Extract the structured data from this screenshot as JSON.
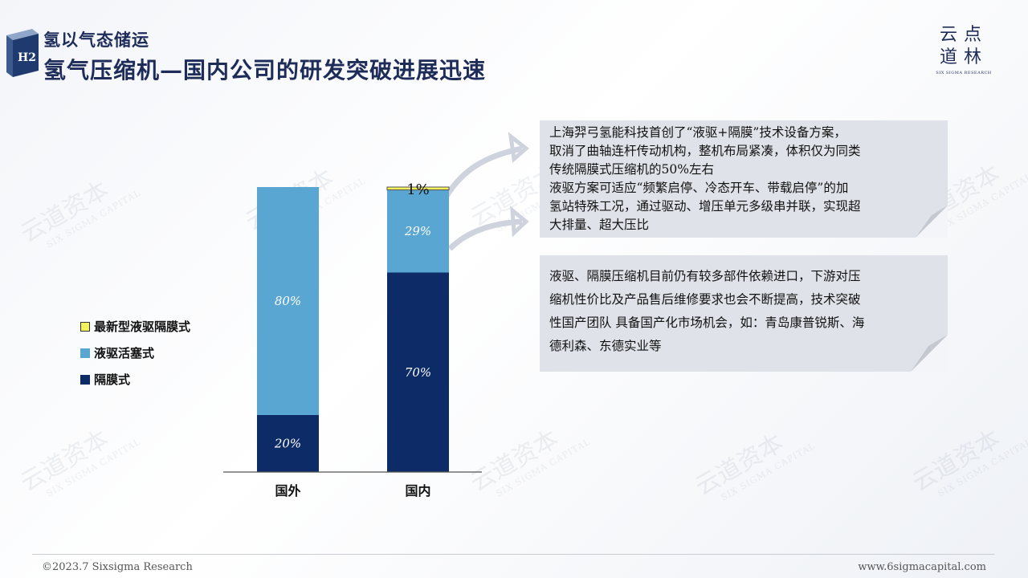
{
  "header": {
    "subtitle": "氢以气态储运",
    "title": "氢气压缩机—国内公司的研发突破进展迅速",
    "cube_label": "H2"
  },
  "logo": {
    "line1": "云点",
    "line2": "道林",
    "tagline": "SIX SIGMA RESEARCH"
  },
  "watermark": {
    "text": "云道资本",
    "subtext": "SIX SIGMA CAPITAL"
  },
  "colors": {
    "membrane": "#0d2b67",
    "piston": "#5aa6d2",
    "newest": "#f4f15a",
    "title": "#1e2c5a"
  },
  "chart_data": {
    "type": "bar",
    "stacked": true,
    "categories": [
      "国外",
      "国内"
    ],
    "series": [
      {
        "name": "隔膜式",
        "values": [
          20,
          70
        ],
        "labels": [
          "20%",
          "70%"
        ],
        "color": "#0d2b67"
      },
      {
        "name": "液驱活塞式",
        "values": [
          80,
          29
        ],
        "labels": [
          "80%",
          "29%"
        ],
        "color": "#5aa6d2"
      },
      {
        "name": "最新型液驱隔膜式",
        "values": [
          0,
          1
        ],
        "labels": [
          "",
          "1%"
        ],
        "color": "#f4f15a"
      }
    ],
    "legend_order": [
      "最新型液驱隔膜式",
      "液驱活塞式",
      "隔膜式"
    ],
    "legend_position": "left",
    "ylim": [
      0,
      100
    ],
    "grid": false
  },
  "notes": [
    {
      "lines": [
        "上海羿弓氢能科技首创了“液驱+隔膜”技术设备方案，",
        "取消了曲轴连杆传动机构，整机布局紧凑，体积仅为同类",
        "传统隔膜式压缩机的50%左右",
        "液驱方案可适应“频繁启停、冷态开车、带载启停”的加",
        "氢站特殊工况，通过驱动、增压单元多级串并联，实现超",
        "大排量、超大压比"
      ]
    },
    {
      "lines": [
        "液驱、隔膜压缩机目前仍有较多部件依赖进口，下游对压",
        "缩机性价比及产品售后维修要求也会不断提高，技术突破",
        "性国产团队 具备国产化市场机会，如：青岛康普锐斯、海",
        "德利森、东德实业等"
      ]
    }
  ],
  "footer": {
    "left": "©2023.7 Sixsigma Research",
    "right": "www.6sigmacapital.com"
  }
}
